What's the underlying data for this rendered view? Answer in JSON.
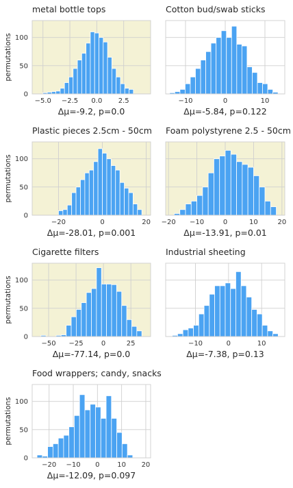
{
  "figure": {
    "bar_color": "#4ba3f2",
    "significant_bg": "#f4f2d5",
    "default_bg": "#ffffff",
    "grid_color": "#cfcfcf"
  },
  "chart_data": [
    {
      "type": "bar",
      "title": "metal bottle tops",
      "ylabel": "permutations",
      "xlabel": "Δμ=-9.2, p=0.0",
      "highlight": true,
      "xlim": [
        -6,
        5
      ],
      "ylim": [
        0,
        130
      ],
      "xticks": [
        -5.0,
        -2.5,
        0.0,
        2.5
      ],
      "xtick_labels": [
        "−5.0",
        "−2.5",
        "0.0",
        "2.5"
      ],
      "yticks": [
        0,
        50,
        100
      ],
      "ytick_labels": [
        "0",
        "50",
        "100"
      ],
      "bin_start": -5.0,
      "bin_width": 0.4,
      "values": [
        2,
        3,
        4,
        5,
        10,
        20,
        30,
        45,
        60,
        72,
        90,
        110,
        108,
        100,
        92,
        65,
        45,
        30,
        18,
        10,
        8
      ]
    },
    {
      "type": "bar",
      "title": "Cotton bud/swab sticks",
      "ylabel": "",
      "xlabel": "Δμ=-5.84, p=0.122",
      "highlight": false,
      "xlim": [
        -15,
        15
      ],
      "ylim": [
        0,
        130
      ],
      "xticks": [
        -10,
        0,
        10
      ],
      "xtick_labels": [
        "−10",
        "0",
        "10"
      ],
      "yticks": [
        0,
        50,
        100
      ],
      "ytick_labels": [
        "",
        "",
        ""
      ],
      "bin_start": -14,
      "bin_width": 1.3,
      "values": [
        2,
        4,
        8,
        18,
        30,
        45,
        60,
        75,
        90,
        100,
        112,
        100,
        120,
        88,
        85,
        48,
        38,
        20,
        18,
        8,
        3
      ]
    },
    {
      "type": "bar",
      "title": "Plastic pieces 2.5cm - 50cm",
      "ylabel": "permutations",
      "xlabel": "Δμ=-28.01, p=0.001",
      "highlight": true,
      "xlim": [
        -32,
        22
      ],
      "ylim": [
        0,
        130
      ],
      "xticks": [
        -20,
        0,
        20
      ],
      "xtick_labels": [
        "−20",
        "0",
        "20"
      ],
      "yticks": [
        0,
        50,
        100
      ],
      "ytick_labels": [
        "0",
        "50",
        "100"
      ],
      "bin_start": -20,
      "bin_width": 2.0,
      "values": [
        8,
        10,
        18,
        40,
        50,
        63,
        75,
        80,
        95,
        118,
        110,
        100,
        88,
        80,
        58,
        48,
        40,
        20,
        10
      ]
    },
    {
      "type": "bar",
      "title": "Foam polystyrene  2.5 - 50cm",
      "ylabel": "",
      "xlabel": "Δμ=-13.91, p=0.01",
      "highlight": true,
      "xlim": [
        -21,
        21
      ],
      "ylim": [
        0,
        130
      ],
      "xticks": [
        -20,
        -10,
        0,
        10,
        20
      ],
      "xtick_labels": [
        "−20",
        "−10",
        "0",
        "10",
        "20"
      ],
      "yticks": [
        0,
        50,
        100
      ],
      "ytick_labels": [
        "",
        "",
        ""
      ],
      "bin_start": -18,
      "bin_width": 2.0,
      "values": [
        3,
        10,
        20,
        25,
        35,
        50,
        75,
        100,
        105,
        115,
        108,
        95,
        90,
        85,
        70,
        50,
        25,
        15
      ]
    },
    {
      "type": "bar",
      "title": "Cigarette filters",
      "ylabel": "permutations",
      "xlabel": "Δμ=-77.14, p=0.0",
      "highlight": true,
      "xlim": [
        -65,
        43
      ],
      "ylim": [
        0,
        130
      ],
      "xticks": [
        -50,
        -25,
        0,
        25
      ],
      "xtick_labels": [
        "−50",
        "−25",
        "0",
        "25"
      ],
      "yticks": [
        0,
        50,
        100
      ],
      "ytick_labels": [
        "0",
        "50",
        "100"
      ],
      "bin_start": -57,
      "bin_width": 4.6,
      "values": [
        2,
        0,
        0,
        2,
        3,
        20,
        35,
        48,
        60,
        78,
        85,
        122,
        93,
        93,
        92,
        80,
        55,
        30,
        18,
        10
      ]
    },
    {
      "type": "bar",
      "title": "Industrial sheeting",
      "ylabel": "",
      "xlabel": "Δμ=-7.38, p=0.13",
      "highlight": false,
      "xlim": [
        -19,
        17
      ],
      "ylim": [
        0,
        130
      ],
      "xticks": [
        -10,
        0,
        10
      ],
      "xtick_labels": [
        "−10",
        "0",
        "10"
      ],
      "yticks": [
        0,
        50,
        100
      ],
      "ytick_labels": [
        "",
        "",
        ""
      ],
      "bin_start": -17,
      "bin_width": 1.6,
      "values": [
        2,
        5,
        12,
        15,
        20,
        40,
        55,
        75,
        90,
        90,
        95,
        85,
        115,
        90,
        70,
        48,
        40,
        20,
        10,
        5
      ]
    },
    {
      "type": "bar",
      "title": "Food wrappers; candy, snacks",
      "ylabel": "permutations",
      "xlabel": "Δμ=-12.09, p=0.097",
      "highlight": false,
      "xlim": [
        -27,
        22
      ],
      "ylim": [
        0,
        130
      ],
      "xticks": [
        -20,
        -10,
        0,
        10,
        20
      ],
      "xtick_labels": [
        "−20",
        "−10",
        "0",
        "10",
        "20"
      ],
      "yticks": [
        0,
        50,
        100
      ],
      "ytick_labels": [
        "0",
        "50",
        "100"
      ],
      "bin_start": -25,
      "bin_width": 2.2,
      "values": [
        5,
        3,
        20,
        25,
        35,
        40,
        55,
        75,
        112,
        85,
        95,
        90,
        70,
        110,
        70,
        45,
        25,
        5
      ]
    }
  ]
}
